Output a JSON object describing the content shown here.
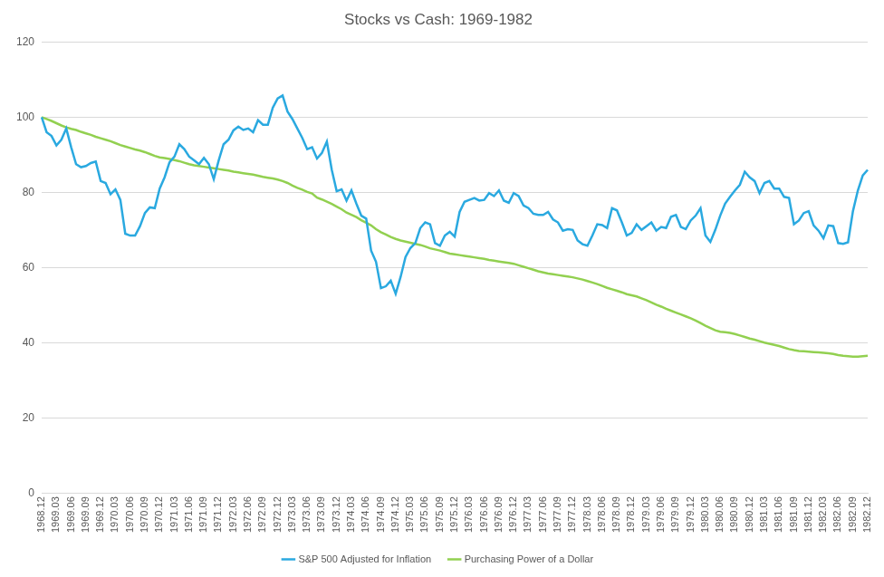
{
  "chart_data": {
    "type": "line",
    "title": "Stocks vs Cash: 1969-1982",
    "categories": [
      "1968.12",
      null,
      null,
      "1969.03",
      null,
      null,
      "1969.06",
      null,
      null,
      "1969.09",
      null,
      null,
      "1969.12",
      null,
      null,
      "1970.03",
      null,
      null,
      "1970.06",
      null,
      null,
      "1970.09",
      null,
      null,
      "1970.12",
      null,
      null,
      "1971.03",
      null,
      null,
      "1971.06",
      null,
      null,
      "1971.09",
      null,
      null,
      "1971.12",
      null,
      null,
      "1972.03",
      null,
      null,
      "1972.06",
      null,
      null,
      "1972.09",
      null,
      null,
      "1972.12",
      null,
      null,
      "1973.03",
      null,
      null,
      "1973.06",
      null,
      null,
      "1973.09",
      null,
      null,
      "1973.12",
      null,
      null,
      "1974.03",
      null,
      null,
      "1974.06",
      null,
      null,
      "1974.09",
      null,
      null,
      "1974.12",
      null,
      null,
      "1975.03",
      null,
      null,
      "1975.06",
      null,
      null,
      "1975.09",
      null,
      null,
      "1975.12",
      null,
      null,
      "1976.03",
      null,
      null,
      "1976.06",
      null,
      null,
      "1976.09",
      null,
      null,
      "1976.12",
      null,
      null,
      "1977.03",
      null,
      null,
      "1977.06",
      null,
      null,
      "1977.09",
      null,
      null,
      "1977.12",
      null,
      null,
      "1978.03",
      null,
      null,
      "1978.06",
      null,
      null,
      "1978.09",
      null,
      null,
      "1978.12",
      null,
      null,
      "1979.03",
      null,
      null,
      "1979.06",
      null,
      null,
      "1979.09",
      null,
      null,
      "1979.12",
      null,
      null,
      "1980.03",
      null,
      null,
      "1980.06",
      null,
      null,
      "1980.09",
      null,
      null,
      "1980.12",
      null,
      null,
      "1981.03",
      null,
      null,
      "1981.06",
      null,
      null,
      "1981.09",
      null,
      null,
      "1981.12",
      null,
      null,
      "1982.03",
      null,
      null,
      "1982.06",
      null,
      null,
      "1982.09",
      null,
      null,
      "1982.12"
    ],
    "series": [
      {
        "name": "S&P 500 Adjusted for Inflation",
        "color": "#2aa9e0",
        "values": [
          100,
          96,
          95,
          92.5,
          94,
          97,
          92,
          87.5,
          86.7,
          87,
          87.8,
          88.2,
          83,
          82.5,
          79.5,
          80.8,
          78,
          69,
          68.5,
          68.5,
          71,
          74.5,
          76,
          75.8,
          81,
          84,
          88,
          89.5,
          92.8,
          91.5,
          89.5,
          88.5,
          87.5,
          89.2,
          87.5,
          83.5,
          88.5,
          92.8,
          94,
          96.5,
          97.5,
          96.6,
          97,
          96,
          99.2,
          98,
          98,
          102.5,
          105,
          105.8,
          101.5,
          99.5,
          97,
          94.5,
          91.5,
          92,
          89,
          90.5,
          93.5,
          86,
          80.3,
          80.8,
          77.8,
          80.5,
          77,
          73.8,
          73,
          64.5,
          61.5,
          54.5,
          55,
          56.5,
          53,
          57.5,
          62.8,
          65.2,
          66.5,
          70.5,
          72,
          71.5,
          66.5,
          65.8,
          68.5,
          69.5,
          68.2,
          74.8,
          77.5,
          78,
          78.5,
          77.8,
          78,
          79.8,
          79,
          80.5,
          77.8,
          77.2,
          79.8,
          79,
          76.5,
          75.8,
          74.3,
          74,
          74,
          74.8,
          72.8,
          72,
          69.8,
          70.2,
          70,
          67.2,
          66.2,
          65.8,
          68.5,
          71.5,
          71.3,
          70.5,
          75.8,
          75.2,
          72,
          68.5,
          69.2,
          71.5,
          70,
          71,
          72,
          69.8,
          70.8,
          70.5,
          73.5,
          74,
          70.8,
          70.2,
          72.5,
          73.8,
          75.8,
          68.5,
          66.8,
          70,
          73.8,
          77,
          78.8,
          80.5,
          82,
          85.5,
          84,
          83,
          79.8,
          82.5,
          83,
          81,
          81,
          78.8,
          78.5,
          71.5,
          72.5,
          74.5,
          75,
          71.2,
          69.8,
          67.8,
          71.2,
          71,
          66.5,
          66.3,
          66.7,
          75,
          80.5,
          84.5,
          86
        ]
      },
      {
        "name": "Purchasing Power of a Dollar",
        "color": "#92d050",
        "values": [
          100,
          99.5,
          99,
          98.4,
          97.8,
          97.3,
          96.9,
          96.6,
          96.1,
          95.7,
          95.3,
          94.8,
          94.4,
          94.0,
          93.6,
          93.1,
          92.6,
          92.2,
          91.8,
          91.4,
          91.1,
          90.7,
          90.2,
          89.7,
          89.3,
          89.1,
          88.9,
          88.6,
          88.3,
          87.9,
          87.5,
          87.2,
          87.0,
          86.8,
          86.6,
          86.4,
          86.2,
          86.0,
          85.8,
          85.5,
          85.3,
          85.1,
          84.9,
          84.7,
          84.4,
          84.1,
          83.9,
          83.7,
          83.4,
          83.0,
          82.5,
          81.8,
          81.2,
          80.7,
          80.1,
          79.7,
          78.6,
          78.1,
          77.5,
          76.9,
          76.2,
          75.5,
          74.6,
          74.0,
          73.4,
          72.6,
          71.9,
          71.2,
          70.2,
          69.4,
          68.8,
          68.1,
          67.6,
          67.2,
          66.9,
          66.6,
          66.3,
          66.0,
          65.6,
          65.1,
          64.8,
          64.5,
          64.1,
          63.7,
          63.5,
          63.3,
          63.1,
          62.9,
          62.7,
          62.5,
          62.3,
          62.0,
          61.8,
          61.6,
          61.4,
          61.2,
          61.0,
          60.6,
          60.2,
          59.8,
          59.4,
          59.0,
          58.7,
          58.4,
          58.2,
          58.0,
          57.8,
          57.6,
          57.4,
          57.1,
          56.8,
          56.4,
          56.0,
          55.6,
          55.1,
          54.6,
          54.2,
          53.8,
          53.4,
          52.9,
          52.6,
          52.3,
          51.8,
          51.3,
          50.7,
          50.1,
          49.6,
          49.0,
          48.5,
          48.0,
          47.5,
          47.0,
          46.5,
          45.9,
          45.2,
          44.5,
          43.9,
          43.3,
          42.9,
          42.8,
          42.6,
          42.3,
          41.9,
          41.5,
          41.1,
          40.8,
          40.4,
          40.0,
          39.7,
          39.4,
          39.1,
          38.7,
          38.3,
          38.0,
          37.8,
          37.7,
          37.6,
          37.5,
          37.4,
          37.3,
          37.2,
          37.0,
          36.7,
          36.5,
          36.4,
          36.3,
          36.3,
          36.4,
          36.5
        ]
      }
    ],
    "ylim": [
      0,
      120
    ],
    "yticks": [
      0,
      20,
      40,
      60,
      80,
      100,
      120
    ],
    "grid": true,
    "legend": "bottom"
  }
}
